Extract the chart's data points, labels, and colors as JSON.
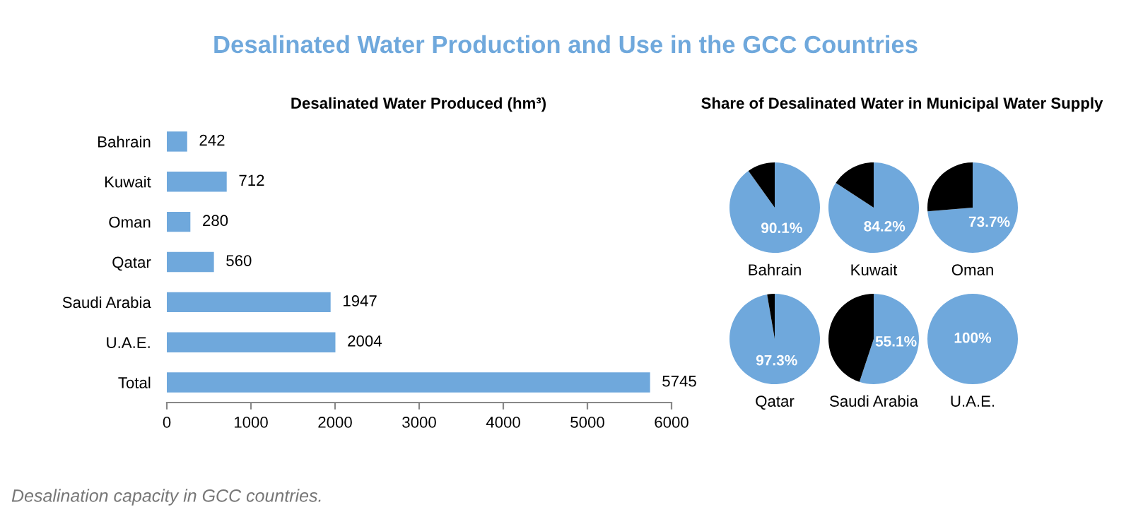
{
  "chart_data": [
    {
      "type": "other",
      "title": "Desalinated Water Production and Use in the GCC Countries",
      "annotations": [
        "Desalination capacity in GCC countries."
      ]
    },
    {
      "type": "bar",
      "orientation": "horizontal",
      "title": "Desalinated Water Produced (hm³)",
      "categories": [
        "Bahrain",
        "Kuwait",
        "Oman",
        "Qatar",
        "Saudi Arabia",
        "U.A.E.",
        "Total"
      ],
      "values": [
        242,
        712,
        280,
        560,
        1947,
        2004,
        5745
      ],
      "color": "#6fa8dc",
      "xlim": [
        0,
        6000
      ],
      "xticks": [
        0,
        1000,
        2000,
        3000,
        4000,
        5000,
        6000
      ],
      "data_labels": true,
      "grid": false
    },
    {
      "type": "other",
      "title": "Share of Desalinated Water in Municipal Water Supply"
    },
    {
      "type": "pie",
      "xlabel": "Bahrain",
      "categories": [
        null,
        null
      ],
      "values": [
        90.1,
        9.9
      ],
      "colors": [
        "#6fa8dc",
        "#000000"
      ],
      "value_labels": [
        "90.1%",
        null
      ]
    },
    {
      "type": "pie",
      "xlabel": "Kuwait",
      "categories": [
        null,
        null
      ],
      "values": [
        84.2,
        15.8
      ],
      "colors": [
        "#6fa8dc",
        "#000000"
      ],
      "value_labels": [
        "84.2%",
        null
      ]
    },
    {
      "type": "pie",
      "xlabel": "Oman",
      "categories": [
        null,
        null
      ],
      "values": [
        73.7,
        26.3
      ],
      "colors": [
        "#6fa8dc",
        "#000000"
      ],
      "value_labels": [
        "73.7%",
        null
      ]
    },
    {
      "type": "pie",
      "xlabel": "Qatar",
      "categories": [
        null,
        null
      ],
      "values": [
        97.3,
        2.7
      ],
      "colors": [
        "#6fa8dc",
        "#000000"
      ],
      "value_labels": [
        "97.3%",
        null
      ]
    },
    {
      "type": "pie",
      "xlabel": "Saudi Arabia",
      "categories": [
        null,
        null
      ],
      "values": [
        55.1,
        44.9
      ],
      "colors": [
        "#6fa8dc",
        "#000000"
      ],
      "value_labels": [
        "55.1%",
        null
      ]
    },
    {
      "type": "pie",
      "xlabel": "U.A.E.",
      "categories": [
        null,
        null
      ],
      "values": [
        100,
        0
      ],
      "colors": [
        "#6fa8dc",
        "#000000"
      ],
      "value_labels": [
        "100%",
        null
      ]
    }
  ]
}
